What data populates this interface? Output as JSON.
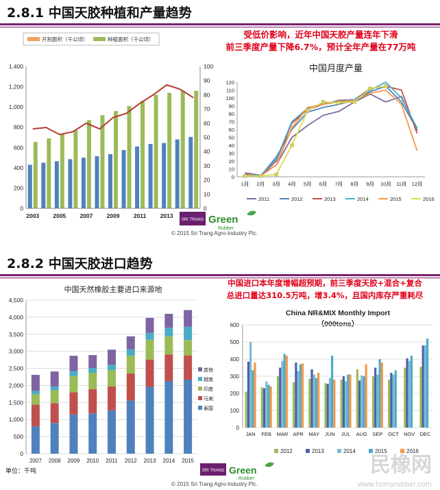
{
  "section1": {
    "title": "2.8.1 中国天胶种植和产量趋势",
    "callout": [
      "受低价影响，近年中国天胶产量连年下滑",
      "前三季度产量下降6.7%，预计全年产量在77万吨"
    ]
  },
  "section2": {
    "title": "2.8.2 中国天胶进口趋势",
    "callout": [
      "中国进口本年度增幅超预期，前三季度天胶+混合+复合",
      "总进口量达310.5万吨，增3.4%，且国内库存严重耗尽"
    ],
    "unit_label": "单位：千吨"
  },
  "logo": {
    "brand": "Green",
    "sub": "Rubber",
    "company": "SRI TRANG",
    "copyright": "© 2015 Sri Trang Agro-Industry Plc."
  },
  "watermark": {
    "text": "民橡网",
    "url": "www.hnmyrubber.com"
  },
  "colors": {
    "accent": "#7a1e6e",
    "callout": "#e0001a",
    "tapped": "#4f81bd",
    "planted": "#9bbb59",
    "output": "#c0504d"
  },
  "chart_data": [
    {
      "id": "planting",
      "type": "bar",
      "legend": [
        "开割面积（千公顷）",
        "种植面积（千公顷）"
      ],
      "categories": [
        "2003",
        "2004",
        "2005",
        "2006",
        "2007",
        "2008",
        "2009",
        "2010",
        "2011",
        "2012",
        "2013",
        "2014",
        "2015"
      ],
      "xtick_labels": [
        "2003",
        "2005",
        "2007",
        "2009",
        "2011",
        "2013",
        "2015"
      ],
      "series": [
        {
          "name": "开割面积（千公顷）",
          "values": [
            430,
            450,
            465,
            485,
            500,
            515,
            535,
            575,
            610,
            635,
            645,
            680,
            705
          ]
        },
        {
          "name": "种植面积（千公顷）",
          "values": [
            655,
            690,
            735,
            770,
            870,
            920,
            960,
            1010,
            1060,
            1120,
            1140,
            1160,
            1160
          ]
        }
      ],
      "line_series": {
        "values": [
          56,
          57,
          52,
          54,
          60,
          56,
          64,
          67,
          74,
          80,
          87,
          84,
          78
        ]
      },
      "ylim": [
        0,
        1400
      ],
      "ylim_right": [
        0,
        100
      ],
      "yticks": [
        "0",
        "200",
        "400",
        "600",
        "800",
        "1,000",
        "1,200",
        "1,400"
      ],
      "yticks_right": [
        "0",
        "10",
        "20",
        "30",
        "40",
        "50",
        "60",
        "70",
        "80",
        "90",
        "100"
      ]
    },
    {
      "id": "monthly",
      "type": "line",
      "title": "中国月度产量",
      "categories": [
        "1月",
        "2月",
        "3月",
        "4月",
        "5月",
        "6月",
        "7月",
        "8月",
        "9月",
        "10月",
        "11月",
        "12月"
      ],
      "series": [
        {
          "name": "2011",
          "values": [
            5,
            2,
            15,
            50,
            65,
            78,
            83,
            95,
            105,
            95,
            102,
            58
          ]
        },
        {
          "name": "2012",
          "values": [
            3,
            1,
            25,
            60,
            82,
            88,
            92,
            97,
            108,
            115,
            95,
            60
          ]
        },
        {
          "name": "2013",
          "values": [
            4,
            1,
            20,
            68,
            85,
            92,
            97,
            98,
            112,
            115,
            110,
            55
          ]
        },
        {
          "name": "2014",
          "values": [
            3,
            2,
            22,
            70,
            87,
            93,
            96,
            98,
            110,
            120,
            100,
            62
          ]
        },
        {
          "name": "2015",
          "values": [
            2,
            1,
            15,
            62,
            88,
            92,
            95,
            97,
            106,
            110,
            92,
            33
          ]
        },
        {
          "name": "2016",
          "values": [
            1,
            1,
            3,
            40,
            84,
            95,
            94,
            95,
            112,
            115,
            null,
            null
          ]
        }
      ],
      "ylim": [
        0,
        120
      ],
      "yticks": [
        "0",
        "10",
        "20",
        "30",
        "40",
        "50",
        "60",
        "70",
        "80",
        "90",
        "100",
        "110",
        "120"
      ]
    },
    {
      "id": "sources",
      "type": "bar",
      "title": "中国天然橡胶主要进口来源地",
      "stacked": true,
      "categories": [
        "2007",
        "2008",
        "2009",
        "2010",
        "2011",
        "2012",
        "2013",
        "2014",
        "2015"
      ],
      "legend": [
        "其他",
        "越南",
        "印度",
        "马来西亚",
        "泰国"
      ],
      "series": [
        {
          "name": "泰国",
          "values": [
            800,
            900,
            1150,
            1180,
            1270,
            1560,
            1960,
            2130,
            2170
          ]
        },
        {
          "name": "马来西亚",
          "values": [
            640,
            580,
            650,
            710,
            700,
            790,
            800,
            780,
            710
          ]
        },
        {
          "name": "印度",
          "values": [
            300,
            380,
            480,
            480,
            480,
            520,
            580,
            530,
            450
          ]
        },
        {
          "name": "越南",
          "values": [
            100,
            110,
            140,
            140,
            160,
            190,
            200,
            250,
            390
          ]
        },
        {
          "name": "其他",
          "values": [
            470,
            440,
            450,
            380,
            440,
            380,
            440,
            410,
            490
          ]
        }
      ],
      "ylim": [
        0,
        4500
      ],
      "yticks": [
        "0",
        "500",
        "1,000",
        "1,500",
        "2,000",
        "2,500",
        "3,000",
        "3,500",
        "4,000",
        "4,500"
      ]
    },
    {
      "id": "monthly_import",
      "type": "bar",
      "title": "China NR&MIX Monthly Import",
      "subtitle": "（000tons）",
      "categories": [
        "JAN",
        "FEB",
        "MAR",
        "APR",
        "MAY",
        "JUN",
        "JUL",
        "AUG",
        "SEP",
        "OCT",
        "NOV",
        "DEC"
      ],
      "series": [
        {
          "name": "2012",
          "values": [
            210,
            235,
            300,
            265,
            285,
            260,
            280,
            340,
            300,
            280,
            350,
            355
          ]
        },
        {
          "name": "2013",
          "values": [
            385,
            230,
            350,
            380,
            340,
            255,
            300,
            275,
            350,
            320,
            405,
            480
          ]
        },
        {
          "name": "2014",
          "values": [
            500,
            270,
            390,
            330,
            310,
            290,
            270,
            305,
            310,
            310,
            390,
            480
          ]
        },
        {
          "name": "2015",
          "values": [
            335,
            250,
            430,
            370,
            290,
            420,
            310,
            300,
            400,
            335,
            420,
            520
          ]
        },
        {
          "name": "2016",
          "values": [
            380,
            240,
            420,
            375,
            320,
            280,
            310,
            370,
            380,
            null,
            null,
            null
          ]
        }
      ],
      "ylim": [
        0,
        600
      ],
      "yticks": [
        "0",
        "100",
        "200",
        "300",
        "400",
        "500",
        "600"
      ]
    }
  ]
}
